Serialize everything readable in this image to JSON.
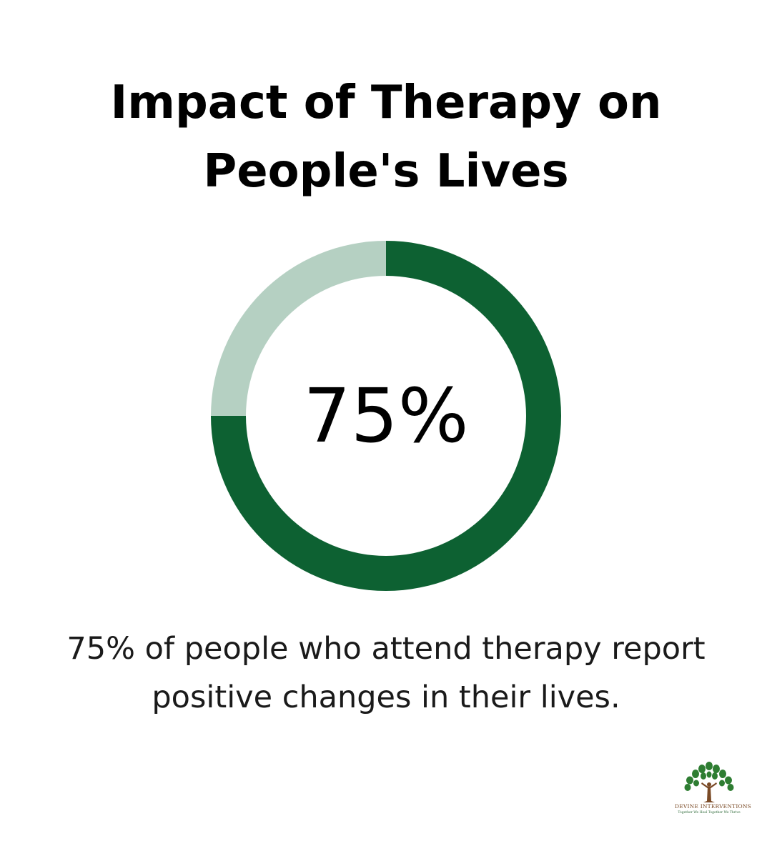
{
  "title_lines": [
    "Impact of Therapy on",
    "People's Lives"
  ],
  "chart_data": {
    "type": "pie",
    "variant": "donut",
    "values": [
      75,
      25
    ],
    "center_label": "75%",
    "colors": [
      "#0d6132",
      "#b5d0c2"
    ]
  },
  "caption_lines": [
    "75% of people who attend therapy report",
    "positive changes in their lives."
  ],
  "logo": {
    "name": "DEVINE INTERVENTIONS",
    "tagline": "Together We Heal Together We Thrive",
    "icon": "tree-of-life-icon"
  }
}
